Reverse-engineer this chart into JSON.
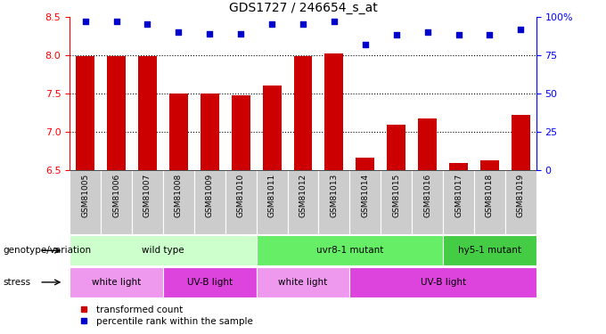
{
  "title": "GDS1727 / 246654_s_at",
  "samples": [
    "GSM81005",
    "GSM81006",
    "GSM81007",
    "GSM81008",
    "GSM81009",
    "GSM81010",
    "GSM81011",
    "GSM81012",
    "GSM81013",
    "GSM81014",
    "GSM81015",
    "GSM81016",
    "GSM81017",
    "GSM81018",
    "GSM81019"
  ],
  "bar_values": [
    7.99,
    7.99,
    7.99,
    7.5,
    7.5,
    7.48,
    7.6,
    7.99,
    8.02,
    6.67,
    7.1,
    7.17,
    6.6,
    6.63,
    7.22
  ],
  "dot_values": [
    97,
    97,
    95,
    90,
    89,
    89,
    95,
    95,
    97,
    82,
    88,
    90,
    88,
    88,
    92
  ],
  "ylim_left": [
    6.5,
    8.5
  ],
  "ylim_right": [
    0,
    100
  ],
  "yticks_left": [
    6.5,
    7.0,
    7.5,
    8.0,
    8.5
  ],
  "yticks_right": [
    0,
    25,
    50,
    75,
    100
  ],
  "bar_color": "#cc0000",
  "dot_color": "#0000cc",
  "bar_width": 0.6,
  "plot_bg_color": "#ffffff",
  "tick_bg_color": "#cccccc",
  "genotype_groups": [
    {
      "label": "wild type",
      "start": 0,
      "end": 6,
      "color": "#ccffcc"
    },
    {
      "label": "uvr8-1 mutant",
      "start": 6,
      "end": 12,
      "color": "#66ee66"
    },
    {
      "label": "hy5-1 mutant",
      "start": 12,
      "end": 15,
      "color": "#44cc44"
    }
  ],
  "stress_groups": [
    {
      "label": "white light",
      "start": 0,
      "end": 3,
      "color": "#ee99ee"
    },
    {
      "label": "UV-B light",
      "start": 3,
      "end": 6,
      "color": "#dd44dd"
    },
    {
      "label": "white light",
      "start": 6,
      "end": 9,
      "color": "#ee99ee"
    },
    {
      "label": "UV-B light",
      "start": 9,
      "end": 15,
      "color": "#dd44dd"
    }
  ],
  "legend_items": [
    {
      "label": "transformed count",
      "color": "#cc0000",
      "marker": "s"
    },
    {
      "label": "percentile rank within the sample",
      "color": "#0000cc",
      "marker": "s"
    }
  ],
  "genotype_label": "genotype/variation",
  "stress_label": "stress",
  "grid_lines": [
    7.0,
    7.5,
    8.0
  ]
}
